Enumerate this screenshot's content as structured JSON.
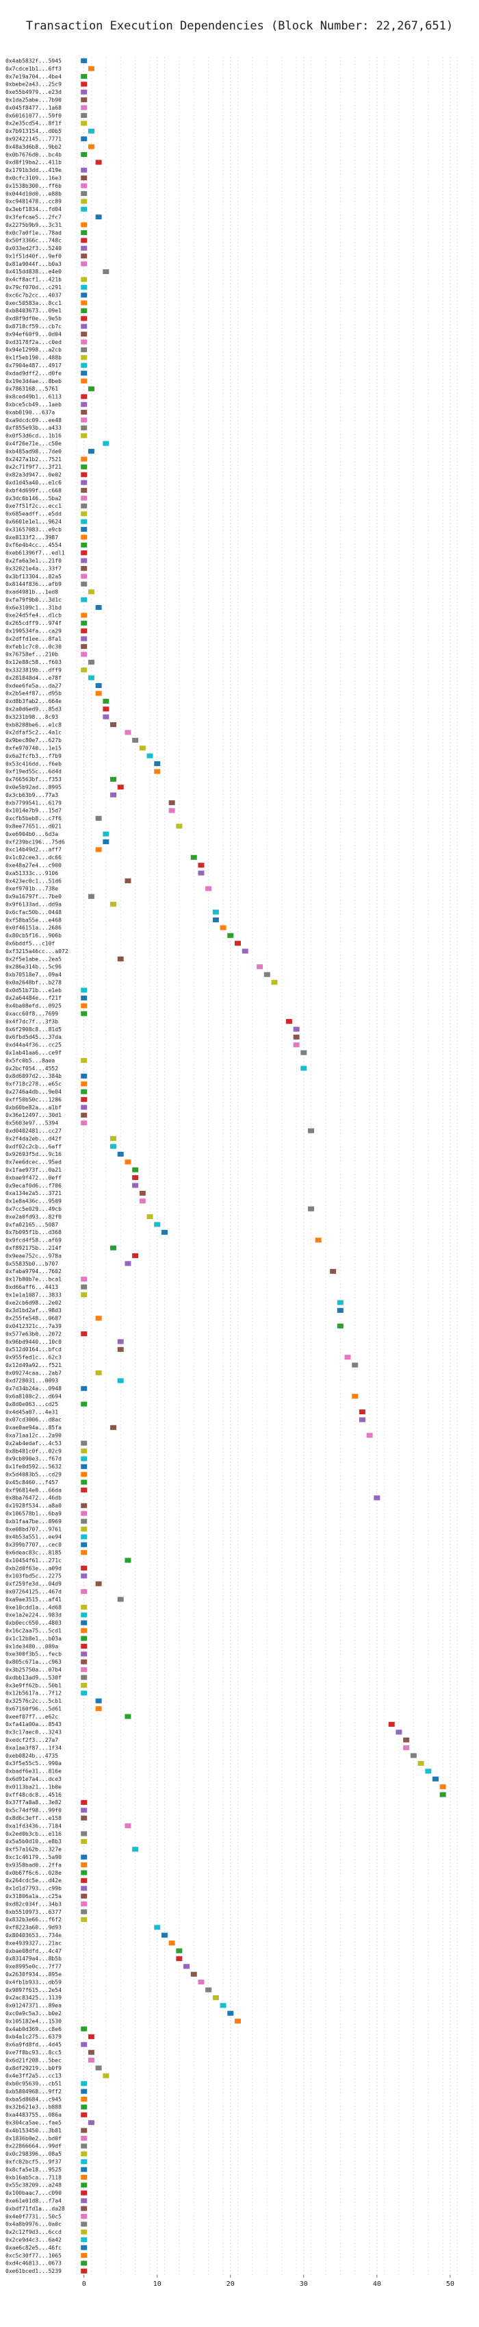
{
  "chart_data": {
    "type": "scatter",
    "title": "Transaction Execution Dependencies (Block Number: 22,267,651)",
    "xlabel": "",
    "ylabel": "",
    "xlim": [
      -1,
      53
    ],
    "xticks": [
      0,
      10,
      20,
      30,
      40,
      50
    ],
    "grid": true,
    "palette": [
      "#1f77b4",
      "#ff7f0e",
      "#2ca02c",
      "#d62728",
      "#9467bd",
      "#8c564b",
      "#e377c2",
      "#7f7f7f",
      "#bcbd22",
      "#17becf"
    ],
    "rows": [
      {
        "tx": "0x4ab5832f...5945",
        "x": 0
      },
      {
        "tx": "0x7cdce1b1...6ff3",
        "x": 1
      },
      {
        "tx": "0x7e19a704...4be4",
        "x": 0
      },
      {
        "tx": "0xbebe2a43...25c9",
        "x": 0
      },
      {
        "tx": "0xe55b4979...e23d",
        "x": 0
      },
      {
        "tx": "0x1da25abe...7b90",
        "x": 0
      },
      {
        "tx": "0x045f8477...1a68",
        "x": 0
      },
      {
        "tx": "0x60161077...59f0",
        "x": 0
      },
      {
        "tx": "0x2e35cd54...8f1f",
        "x": 0
      },
      {
        "tx": "0x7b913154...d0b5",
        "x": 1
      },
      {
        "tx": "0x92422145...7771",
        "x": 0
      },
      {
        "tx": "0x48a3d6b8...9bb2",
        "x": 1
      },
      {
        "tx": "0x0b7676d0...bc4b",
        "x": 0
      },
      {
        "tx": "0xd8f19ba2...411b",
        "x": 2
      },
      {
        "tx": "0x1791b3dd...419e",
        "x": 0
      },
      {
        "tx": "0x0cfc3109...16e3",
        "x": 0
      },
      {
        "tx": "0x1538b300...ff6b",
        "x": 0
      },
      {
        "tx": "0x044d10d0...e88b",
        "x": 0
      },
      {
        "tx": "0xc9481478...cc89",
        "x": 0
      },
      {
        "tx": "0x3ebf1834...fd04",
        "x": 0
      },
      {
        "tx": "0x3fefcae5...2fc7",
        "x": 2
      },
      {
        "tx": "0x2275b9b9...3c31",
        "x": 0
      },
      {
        "tx": "0x0c7a0f1e...78ad",
        "x": 0
      },
      {
        "tx": "0x50f3366c...748c",
        "x": 0
      },
      {
        "tx": "0x033ed2f3...5240",
        "x": 0
      },
      {
        "tx": "0x1f51d40f...9ef0",
        "x": 0
      },
      {
        "tx": "0x81a9044f...b0a3",
        "x": 0
      },
      {
        "tx": "0x415dd838...e4e0",
        "x": 3
      },
      {
        "tx": "0x4cf8acf1...421b",
        "x": 0
      },
      {
        "tx": "0x79cf070d...c291",
        "x": 0
      },
      {
        "tx": "0xc6c7b2cc...4037",
        "x": 0
      },
      {
        "tx": "0xec50583a...8cc1",
        "x": 0
      },
      {
        "tx": "0xb8403673...09e1",
        "x": 0
      },
      {
        "tx": "0xd8f9df0e...9e5b",
        "x": 0
      },
      {
        "tx": "0x8718cf59...cb7c",
        "x": 0
      },
      {
        "tx": "0x94ef60f9...0d04",
        "x": 0
      },
      {
        "tx": "0xd3178f2a...c0ed",
        "x": 0
      },
      {
        "tx": "0x94e12998...a2cb",
        "x": 0
      },
      {
        "tx": "0x1f5eb190...488b",
        "x": 0
      },
      {
        "tx": "0x7904e487...4917",
        "x": 0
      },
      {
        "tx": "0xdad9dff2...d0fe",
        "x": 0
      },
      {
        "tx": "0x19e3d4ae...8beb",
        "x": 0
      },
      {
        "tx": "0x7863168...5761",
        "x": 1
      },
      {
        "tx": "0x8ced49b1...6113",
        "x": 0
      },
      {
        "tx": "0xbce5cb49...1aeb",
        "x": 0
      },
      {
        "tx": "0xab0190...637a",
        "x": 0
      },
      {
        "tx": "0xa9dcdc09...ee48",
        "x": 0
      },
      {
        "tx": "0xf855e93b...a433",
        "x": 0
      },
      {
        "tx": "0x0f53d6cd...1b16",
        "x": 0
      },
      {
        "tx": "0x4f26e71e...c50e",
        "x": 3
      },
      {
        "tx": "0xb485ad98...7de0",
        "x": 1
      },
      {
        "tx": "0x2427a1b2...7521",
        "x": 0
      },
      {
        "tx": "0x2c71f9f7...3f21",
        "x": 0
      },
      {
        "tx": "0x82a3d947...0e02",
        "x": 0
      },
      {
        "tx": "0xd1d45a40...e1c6",
        "x": 0
      },
      {
        "tx": "0xbf4d699f...c668",
        "x": 0
      },
      {
        "tx": "0x3dc6b146...5ba2",
        "x": 0
      },
      {
        "tx": "0xe7f51f2c...ecc1",
        "x": 0
      },
      {
        "tx": "0x685eadff...e5dd",
        "x": 0
      },
      {
        "tx": "0x6601e1e1...9624",
        "x": 0
      },
      {
        "tx": "0x31657083...e9cb",
        "x": 0
      },
      {
        "tx": "0xe8133f2...3987",
        "x": 0
      },
      {
        "tx": "0xf6e4b4cc...4554",
        "x": 0
      },
      {
        "tx": "0xeb61396f7...edl1",
        "x": 0
      },
      {
        "tx": "0x2fa6a3e1...21f0",
        "x": 0
      },
      {
        "tx": "0x32021e4a...33f7",
        "x": 0
      },
      {
        "tx": "0x3bf13304...82a5",
        "x": 0
      },
      {
        "tx": "0x8144f836...afb9",
        "x": 0
      },
      {
        "tx": "0xad4981b...1ed8",
        "x": 1
      },
      {
        "tx": "0xfa79f9b0...3d1c",
        "x": 0
      },
      {
        "tx": "0x6e3109c1...31bd",
        "x": 2
      },
      {
        "tx": "0xe24d5fe4...d1cb",
        "x": 0
      },
      {
        "tx": "0x265cdff9...974f",
        "x": 0
      },
      {
        "tx": "0x199534fa...ca29",
        "x": 0
      },
      {
        "tx": "0x2dffd1ee...8fa1",
        "x": 0
      },
      {
        "tx": "0xfeb1c7c0...0c30",
        "x": 0
      },
      {
        "tx": "0x76758ef...210b",
        "x": 0
      },
      {
        "tx": "0x12e88c58...f603",
        "x": 1
      },
      {
        "tx": "0x3323819b...dff9",
        "x": 0
      },
      {
        "tx": "0x281848d4...e78f",
        "x": 1
      },
      {
        "tx": "0xdee6fe5a...da27",
        "x": 2
      },
      {
        "tx": "0x2b5e4f87...d95b",
        "x": 2
      },
      {
        "tx": "0xd8b3fab2...664e",
        "x": 3
      },
      {
        "tx": "0x2a0d6ed9...85d3",
        "x": 3
      },
      {
        "tx": "0x3231b98...8c93",
        "x": 3
      },
      {
        "tx": "0xb8208be6...e1c8",
        "x": 4
      },
      {
        "tx": "0x2dfaf5c2...4a1c",
        "x": 6
      },
      {
        "tx": "0x9bec80e7...627b",
        "x": 7
      },
      {
        "tx": "0xfe970740...1e15",
        "x": 8
      },
      {
        "tx": "0x6a2fcfb3...f7b9",
        "x": 9
      },
      {
        "tx": "0x53c416dd...f6eb",
        "x": 10
      },
      {
        "tx": "0xf19ed55c...6d4d",
        "x": 10
      },
      {
        "tx": "0x766563bf...f353",
        "x": 4
      },
      {
        "tx": "0x0e5b92ad...8995",
        "x": 5
      },
      {
        "tx": "0x3cb63b9...77a3",
        "x": 4
      },
      {
        "tx": "0xb7799541...6179",
        "x": 12
      },
      {
        "tx": "0x1014e7b9...15d7",
        "x": 12
      },
      {
        "tx": "0xcfb5beb8...c7f6",
        "x": 2
      },
      {
        "tx": "0x8ee77651...d021",
        "x": 13
      },
      {
        "tx": "0xe6904b0...6d3a",
        "x": 3
      },
      {
        "tx": "0xf239bc196...75d6",
        "x": 3
      },
      {
        "tx": "0xc14b49d2...aff7",
        "x": 2
      },
      {
        "tx": "0x1c02cee3...dc66",
        "x": 15
      },
      {
        "tx": "0xe48a27e4...c900",
        "x": 16
      },
      {
        "tx": "0xa51333c...9106",
        "x": 16
      },
      {
        "tx": "0x423ec0c1...51d6",
        "x": 6
      },
      {
        "tx": "0xef9701b...738e",
        "x": 17
      },
      {
        "tx": "0x9a16797f...7be0",
        "x": 1
      },
      {
        "tx": "0x9f6133ad...dd9a",
        "x": 4
      },
      {
        "tx": "0x6cfac50b...0448",
        "x": 18
      },
      {
        "tx": "0xf58ba55e...e468",
        "x": 18
      },
      {
        "tx": "0x0f46151a...2686",
        "x": 19
      },
      {
        "tx": "0x80cb5f16...906b",
        "x": 20
      },
      {
        "tx": "0x6bddf5...c10f",
        "x": 21
      },
      {
        "tx": "0xf3215a46cc...a072",
        "x": 22
      },
      {
        "tx": "0x2f5e1abe...2ea5",
        "x": 5
      },
      {
        "tx": "0x286e314b...5c96",
        "x": 24
      },
      {
        "tx": "0xb70518e7...09a4",
        "x": 25
      },
      {
        "tx": "0x0a2648bf...b278",
        "x": 26
      },
      {
        "tx": "0x0d51b71b...e1eb",
        "x": 0
      },
      {
        "tx": "0x2a64484e...f21f",
        "x": 0
      },
      {
        "tx": "0x4ba08efd...0925",
        "x": 0
      },
      {
        "tx": "0xacc60f8...7699",
        "x": 0
      },
      {
        "tx": "0x4f7dc7f...3f3b",
        "x": 28
      },
      {
        "tx": "0x6f2908c8...81d5",
        "x": 29
      },
      {
        "tx": "0x6fbd5d45...37da",
        "x": 29
      },
      {
        "tx": "0xd44a4f36...cc25",
        "x": 29
      },
      {
        "tx": "0x1ab41aa6...ce9f",
        "x": 30
      },
      {
        "tx": "0x5fc0b5...8aea",
        "x": 0
      },
      {
        "tx": "0x2bcf054...4552",
        "x": 30
      },
      {
        "tx": "0x8d6097d2...384b",
        "x": 0
      },
      {
        "tx": "0xf718c278...e65c",
        "x": 0
      },
      {
        "tx": "0x2746a4db...9e04",
        "x": 0
      },
      {
        "tx": "0xff50b50c...1286",
        "x": 0
      },
      {
        "tx": "0xb60be82a...a1bf",
        "x": 0
      },
      {
        "tx": "0x36e12497...30d1",
        "x": 0
      },
      {
        "tx": "0x5603e97...5394",
        "x": 0
      },
      {
        "tx": "0xd0402481...cc27",
        "x": 31
      },
      {
        "tx": "0x2f4da2eb...d42f",
        "x": 4
      },
      {
        "tx": "0xdf02c2cb...6aff",
        "x": 4
      },
      {
        "tx": "0x92693f5d...9c16",
        "x": 5
      },
      {
        "tx": "0x7ee6dcec...95ed",
        "x": 6
      },
      {
        "tx": "0x1fae973f...0a21",
        "x": 7
      },
      {
        "tx": "0xbae9f472...0eff",
        "x": 7
      },
      {
        "tx": "0x9ecaf0d6...f706",
        "x": 7
      },
      {
        "tx": "0xa134e2a5...3721",
        "x": 8
      },
      {
        "tx": "0x1e8a436c...9509",
        "x": 8
      },
      {
        "tx": "0x7cc5e029...49cb",
        "x": 31
      },
      {
        "tx": "0xe2a0fd93...82f0",
        "x": 9
      },
      {
        "tx": "0xfa02165...5087",
        "x": 10
      },
      {
        "tx": "0x7b095f1b...d368",
        "x": 11
      },
      {
        "tx": "0x9fcd4f58...af69",
        "x": 32
      },
      {
        "tx": "0xf892175b...214f",
        "x": 4
      },
      {
        "tx": "0x9eae752c...978a",
        "x": 7
      },
      {
        "tx": "0x55835b0...b707",
        "x": 6
      },
      {
        "tx": "0xfaba9794...7602",
        "x": 34
      },
      {
        "tx": "0x17b80b7e...bca1",
        "x": 0
      },
      {
        "tx": "0xd66aff6...4413",
        "x": 0
      },
      {
        "tx": "0x1e1a1087...3833",
        "x": 0
      },
      {
        "tx": "0xe2cb6d98...2e02",
        "x": 35
      },
      {
        "tx": "0x3d1bd2af...98d3",
        "x": 35
      },
      {
        "tx": "0x255fe548...0687",
        "x": 2
      },
      {
        "tx": "0x0412321c...7a39",
        "x": 35
      },
      {
        "tx": "0x577e63b0...2072",
        "x": 0
      },
      {
        "tx": "0x96bd9440...10c0",
        "x": 5
      },
      {
        "tx": "0x512d0164...bfcd",
        "x": 5
      },
      {
        "tx": "0x955fed1c...62c3",
        "x": 36
      },
      {
        "tx": "0x12d49a92...f521",
        "x": 37
      },
      {
        "tx": "0x09274caa...2ab7",
        "x": 2
      },
      {
        "tx": "0xd728031...0093",
        "x": 5
      },
      {
        "tx": "0x7d34b24a...0948",
        "x": 0
      },
      {
        "tx": "0x6a8108c2...d694",
        "x": 37
      },
      {
        "tx": "0x8d0e063...cd25",
        "x": 0
      },
      {
        "tx": "0x4d45a07...4e31",
        "x": 38
      },
      {
        "tx": "0x07cd3006...d8ac",
        "x": 38
      },
      {
        "tx": "0xae0ae94a...85fa",
        "x": 4
      },
      {
        "tx": "0xa71aa12c...2a90",
        "x": 39
      },
      {
        "tx": "0x2ab4edaf...4c53",
        "x": 0
      },
      {
        "tx": "0x8b481c0f...02c9",
        "x": 0
      },
      {
        "tx": "0x9cb090e3...f67d",
        "x": 0
      },
      {
        "tx": "0x1fe0d592...5632",
        "x": 0
      },
      {
        "tx": "0x5d4083b5...cd29",
        "x": 0
      },
      {
        "tx": "0x45c8460...f457",
        "x": 0
      },
      {
        "tx": "0xf96814e0...66da",
        "x": 0
      },
      {
        "tx": "0x8ba76472...46db",
        "x": 40
      },
      {
        "tx": "0x1928f534...a8a0",
        "x": 0
      },
      {
        "tx": "0x106578b1...6ba9",
        "x": 0
      },
      {
        "tx": "0xb1faa7be...8969",
        "x": 0
      },
      {
        "tx": "0xe08bd707...9761",
        "x": 0
      },
      {
        "tx": "0x4b53a551...ee94",
        "x": 0
      },
      {
        "tx": "0x399b7707...cec0",
        "x": 0
      },
      {
        "tx": "0x6deac83c...8185",
        "x": 0
      },
      {
        "tx": "0x10454f61...271c",
        "x": 6
      },
      {
        "tx": "0xb2d0f63e...a09d",
        "x": 0
      },
      {
        "tx": "0x103fbd5c...2275",
        "x": 0
      },
      {
        "tx": "0xf259fe3d...04d9",
        "x": 2
      },
      {
        "tx": "0x07264125...467d",
        "x": 0
      },
      {
        "tx": "0xa9ae3515...af41",
        "x": 5
      },
      {
        "tx": "0xe10cdd1a...4d68",
        "x": 0
      },
      {
        "tx": "0xe1a2e224...983d",
        "x": 0
      },
      {
        "tx": "0xb0ecc650...4803",
        "x": 0
      },
      {
        "tx": "0x16c2aa75...5cd1",
        "x": 0
      },
      {
        "tx": "0x1c12b8e1...b03a",
        "x": 0
      },
      {
        "tx": "0x1de3480...089a",
        "x": 0
      },
      {
        "tx": "0xe300f3b5...fecb",
        "x": 0
      },
      {
        "tx": "0x805c671a...c963",
        "x": 0
      },
      {
        "tx": "0x3b25750a...07b4",
        "x": 0
      },
      {
        "tx": "0xdbb13ad9...530f",
        "x": 0
      },
      {
        "tx": "0x3e9ff62b...50b1",
        "x": 0
      },
      {
        "tx": "0x12b5617a...7f12",
        "x": 0
      },
      {
        "tx": "0x32576c2c...5cb1",
        "x": 2
      },
      {
        "tx": "0x67160f96...5d61",
        "x": 2
      },
      {
        "tx": "0xeef07f7...e62c",
        "x": 6
      },
      {
        "tx": "0xfa41a00a...8543",
        "x": 42
      },
      {
        "tx": "0x3c17aec0...3243",
        "x": 43
      },
      {
        "tx": "0xedcf2f3...27a7",
        "x": 44
      },
      {
        "tx": "0xa1ae3f87...1f34",
        "x": 44
      },
      {
        "tx": "0xeb0824b...4735",
        "x": 45
      },
      {
        "tx": "0x3f5e55c5...990a",
        "x": 46
      },
      {
        "tx": "0xbadf6e31...816e",
        "x": 47
      },
      {
        "tx": "0x6d91e7a4...dce3",
        "x": 48
      },
      {
        "tx": "0x0113ba21...1b0e",
        "x": 49
      },
      {
        "tx": "0xff48cdc8...4516",
        "x": 49
      },
      {
        "tx": "0x37f7a8a8...3e82",
        "x": 0
      },
      {
        "tx": "0x5c74df98...99f0",
        "x": 0
      },
      {
        "tx": "0x8d6c3eff...e158",
        "x": 0
      },
      {
        "tx": "0xa1fd3436...7184",
        "x": 6
      },
      {
        "tx": "0x2ed0b3cb...e116",
        "x": 0
      },
      {
        "tx": "0x5a5b0d10...e8b3",
        "x": 0
      },
      {
        "tx": "0xf57a162b...327e",
        "x": 7
      },
      {
        "tx": "0xc1c46179...5a90",
        "x": 0
      },
      {
        "tx": "0x9358bad0...2ffa",
        "x": 0
      },
      {
        "tx": "0x0b67f6c6...028e",
        "x": 0
      },
      {
        "tx": "0x264cdc5e...d42e",
        "x": 0
      },
      {
        "tx": "0x1d1d7793...c99b",
        "x": 0
      },
      {
        "tx": "0x31806a1a...c25a",
        "x": 0
      },
      {
        "tx": "0xd82c034f...34b3",
        "x": 0
      },
      {
        "tx": "0xb5510973...6377",
        "x": 0
      },
      {
        "tx": "0x832b3e66...f6f2",
        "x": 0
      },
      {
        "tx": "0xf8223a60...9d93",
        "x": 10
      },
      {
        "tx": "0x80403653...734e",
        "x": 11
      },
      {
        "tx": "0xe4939327...21ac",
        "x": 12
      },
      {
        "tx": "0xbae08dfd...4c47",
        "x": 13
      },
      {
        "tx": "0x831479a4...8b5b",
        "x": 13
      },
      {
        "tx": "0xe8995e0c...7f77",
        "x": 14
      },
      {
        "tx": "0x2630f934...895e",
        "x": 15
      },
      {
        "tx": "0x4fb1b933...db59",
        "x": 16
      },
      {
        "tx": "0x9897f615...2e54",
        "x": 17
      },
      {
        "tx": "0x2ac83425...1139",
        "x": 18
      },
      {
        "tx": "0x01247371...89ea",
        "x": 19
      },
      {
        "tx": "0xc0a9c5a3...b0e2",
        "x": 20
      },
      {
        "tx": "0x105182e4...1530",
        "x": 21
      },
      {
        "tx": "0x4ab0d369...c8e6",
        "x": 0
      },
      {
        "tx": "0xb4a1c275...6379",
        "x": 1
      },
      {
        "tx": "0x6a9fd8fd...4d45",
        "x": 0
      },
      {
        "tx": "0xe7f8bc93...8cc5",
        "x": 1
      },
      {
        "tx": "0x6d21f208...5bec",
        "x": 1
      },
      {
        "tx": "0x8df29219...b0f9",
        "x": 2
      },
      {
        "tx": "0x4e3ff2a5...cc13",
        "x": 3
      },
      {
        "tx": "0xb0c95639...cb51",
        "x": 0
      },
      {
        "tx": "0xb5804968...9ff2",
        "x": 0
      },
      {
        "tx": "0xba5d8684...c945",
        "x": 0
      },
      {
        "tx": "0x32b621e3...b888",
        "x": 0
      },
      {
        "tx": "0xa4483755...086a",
        "x": 0
      },
      {
        "tx": "0x304ca5ae...fae5",
        "x": 1
      },
      {
        "tx": "0x4b153450...3b81",
        "x": 0
      },
      {
        "tx": "0x1836b0e2...bd0f",
        "x": 0
      },
      {
        "tx": "0x22866664...99df",
        "x": 0
      },
      {
        "tx": "0x0c298396...08a5",
        "x": 0
      },
      {
        "tx": "0xfc02bcf5...9f37",
        "x": 0
      },
      {
        "tx": "0x8cfa5e18...9525",
        "x": 0
      },
      {
        "tx": "0xb16ab5ca...7118",
        "x": 0
      },
      {
        "tx": "0x55c38209...a248",
        "x": 0
      },
      {
        "tx": "0x100baac7...c090",
        "x": 0
      },
      {
        "tx": "0xe61e01d8...f7a4",
        "x": 0
      },
      {
        "tx": "0xbdf71fd1a...da28",
        "x": 0
      },
      {
        "tx": "0x4e0f7731...50c5",
        "x": 0
      },
      {
        "tx": "0x4a8b9976...0a0c",
        "x": 0
      },
      {
        "tx": "0x2c12f9d3...6ccd",
        "x": 0
      },
      {
        "tx": "0x2ce9d4c3...6a42",
        "x": 0
      },
      {
        "tx": "0xae6c82e5...46fc",
        "x": 0
      },
      {
        "tx": "0xc5c30f77...1065",
        "x": 0
      },
      {
        "tx": "0xd4c46813...0673",
        "x": 0
      },
      {
        "tx": "0xe61bced1...5239",
        "x": 0
      }
    ]
  }
}
